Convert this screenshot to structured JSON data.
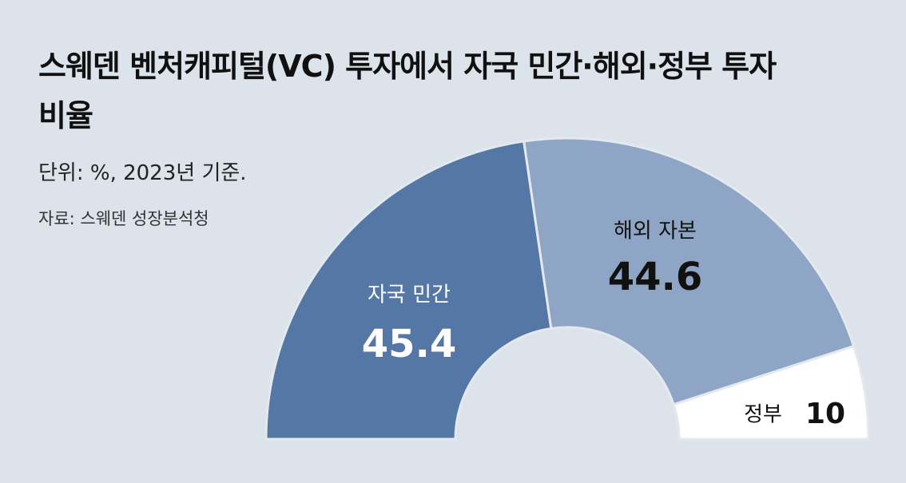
{
  "chart_data": {
    "type": "semi-donut",
    "title": "스웨덴 벤처캐피털(VC) 투자에서 자국 민간·해외·정부 투자 비율",
    "subtitle": "단위: %, 2023년 기준.",
    "source": "자료: 스웨덴 성장분석청",
    "categories": [
      "자국 민간",
      "해외 자본",
      "정부"
    ],
    "values": [
      45.4,
      44.6,
      10
    ],
    "colors": [
      "#5577a5",
      "#8fa5c5",
      "#ffffff"
    ]
  }
}
